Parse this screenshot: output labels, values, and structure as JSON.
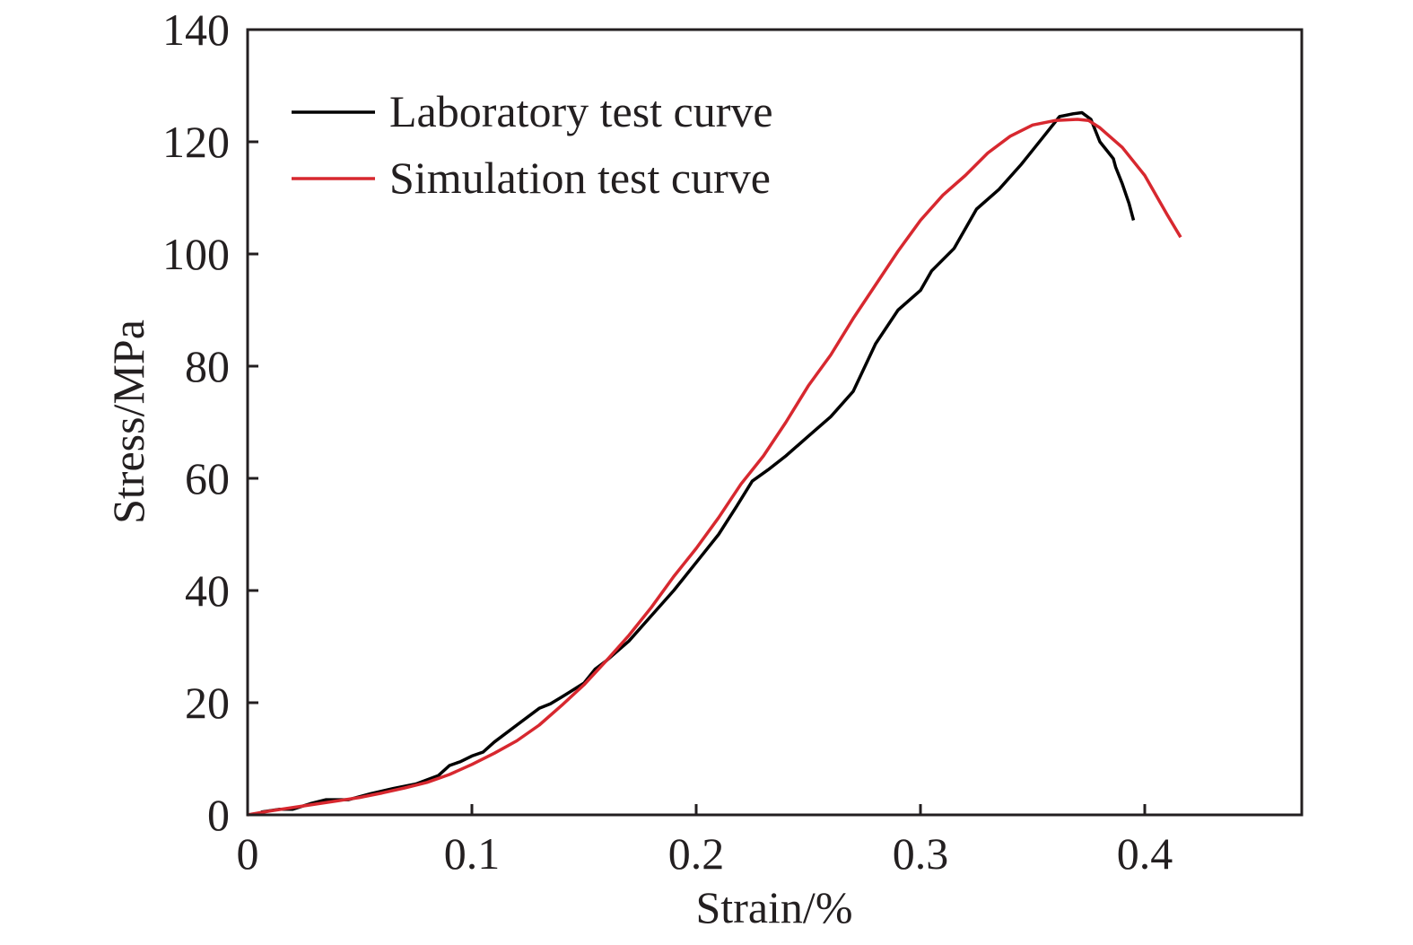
{
  "chart_data": {
    "type": "line",
    "title": "",
    "xlabel": "Strain/%",
    "ylabel": "Stress/MPa",
    "xlim": [
      0,
      0.47
    ],
    "ylim": [
      0,
      140
    ],
    "xticks": [
      0,
      0.1,
      0.2,
      0.3,
      0.4
    ],
    "xtick_labels": [
      "0",
      "0.1",
      "0.2",
      "0.3",
      "0.4"
    ],
    "yticks": [
      0,
      20,
      40,
      60,
      80,
      100,
      120,
      140
    ],
    "ytick_labels": [
      "0",
      "20",
      "40",
      "60",
      "80",
      "100",
      "120",
      "140"
    ],
    "grid": false,
    "legend_position": "top-left",
    "series": [
      {
        "name": "Laboratory test curve",
        "color": "#000000",
        "x": [
          0.006,
          0.014,
          0.02,
          0.028,
          0.035,
          0.045,
          0.055,
          0.065,
          0.075,
          0.085,
          0.09,
          0.095,
          0.1,
          0.105,
          0.11,
          0.12,
          0.13,
          0.135,
          0.14,
          0.15,
          0.155,
          0.16,
          0.17,
          0.18,
          0.19,
          0.2,
          0.21,
          0.218,
          0.225,
          0.232,
          0.24,
          0.25,
          0.26,
          0.27,
          0.28,
          0.29,
          0.3,
          0.305,
          0.315,
          0.325,
          0.335,
          0.345,
          0.355,
          0.362,
          0.368,
          0.372,
          0.376,
          0.38,
          0.384,
          0.386,
          0.387,
          0.39,
          0.393,
          0.395
        ],
        "y": [
          0.5,
          1.0,
          1.0,
          2.0,
          2.7,
          2.7,
          3.8,
          4.7,
          5.5,
          7.0,
          8.8,
          9.5,
          10.5,
          11.2,
          13.0,
          16.0,
          19.0,
          19.8,
          21.0,
          23.5,
          26.0,
          27.5,
          31.0,
          35.5,
          40.0,
          45.0,
          50.0,
          55.0,
          59.5,
          61.5,
          64.0,
          67.5,
          71.0,
          75.5,
          84.0,
          90.0,
          93.5,
          97.0,
          101.0,
          108.0,
          111.5,
          116.0,
          121.0,
          124.5,
          125.0,
          125.2,
          124.0,
          120.0,
          118.0,
          117.0,
          115.5,
          112.5,
          109.0,
          106.0
        ]
      },
      {
        "name": "Simulation test curve",
        "color": "#d7282f",
        "x": [
          0.0,
          0.01,
          0.02,
          0.03,
          0.04,
          0.05,
          0.06,
          0.07,
          0.08,
          0.09,
          0.1,
          0.11,
          0.12,
          0.13,
          0.14,
          0.15,
          0.16,
          0.17,
          0.18,
          0.19,
          0.2,
          0.21,
          0.22,
          0.23,
          0.24,
          0.25,
          0.26,
          0.27,
          0.28,
          0.29,
          0.3,
          0.31,
          0.32,
          0.33,
          0.34,
          0.35,
          0.36,
          0.37,
          0.375,
          0.38,
          0.39,
          0.4,
          0.41,
          0.416
        ],
        "y": [
          0.0,
          0.7,
          1.3,
          1.9,
          2.5,
          3.1,
          3.9,
          4.8,
          5.8,
          7.2,
          9.0,
          11.0,
          13.2,
          16.0,
          19.5,
          23.2,
          27.5,
          32.0,
          37.0,
          42.5,
          47.5,
          53.0,
          59.0,
          64.0,
          70.0,
          76.5,
          82.0,
          88.5,
          94.5,
          100.5,
          106.0,
          110.5,
          114.0,
          118.0,
          121.0,
          123.0,
          123.8,
          124.0,
          123.8,
          122.5,
          119.0,
          114.0,
          107.0,
          103.0
        ]
      }
    ]
  }
}
